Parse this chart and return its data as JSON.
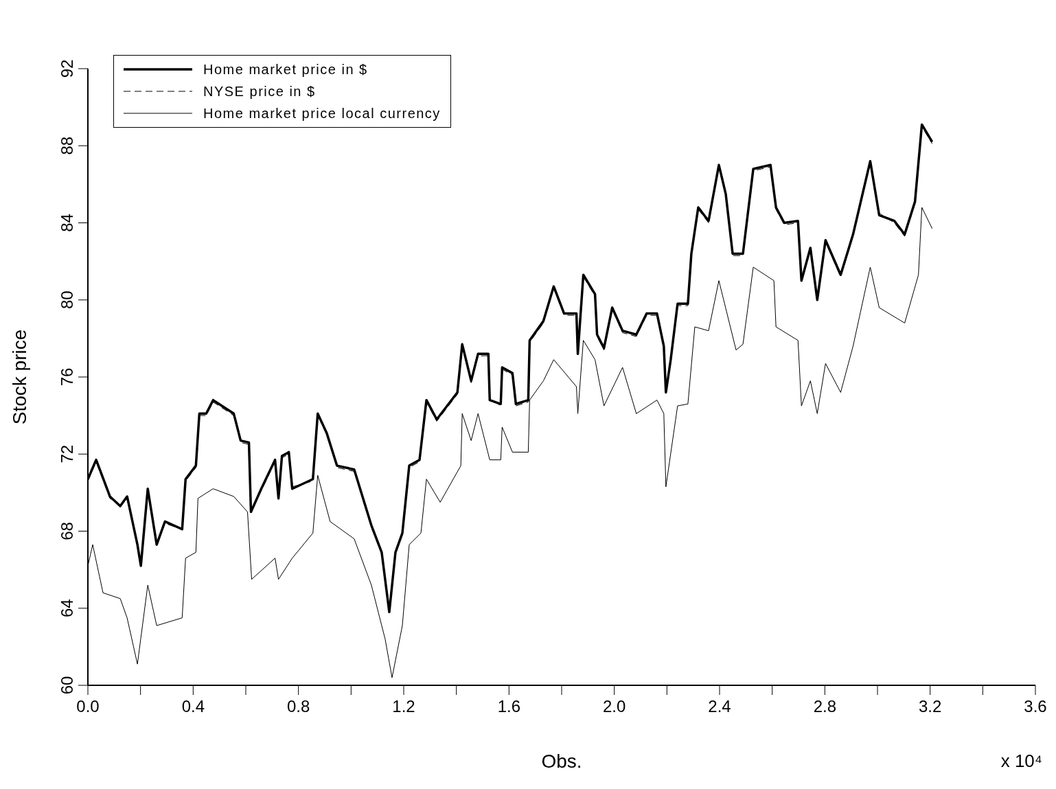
{
  "chart_data": {
    "type": "line",
    "xlabel": "Obs.",
    "ylabel": "Stock price",
    "annotations": [
      "x 10⁴"
    ],
    "xlim": [
      0,
      3.6
    ],
    "ylim": [
      60,
      92
    ],
    "xticks": [
      {
        "value": 0,
        "label": "0.0"
      },
      {
        "value": 0.2,
        "label": null
      },
      0.4,
      {
        "value": 0.6,
        "label": null
      },
      0.8,
      {
        "value": 1.0,
        "label": null
      },
      1.2,
      {
        "value": 1.4,
        "label": null
      },
      1.6,
      {
        "value": 1.8,
        "label": null
      },
      {
        "value": 2,
        "label": "2.0"
      },
      {
        "value": 2.2,
        "label": null
      },
      2.4,
      {
        "value": 2.6,
        "label": null
      },
      2.8,
      {
        "value": 3.0,
        "label": null
      },
      3.2,
      {
        "value": 3.4,
        "label": null
      },
      3.6
    ],
    "yticks": [
      60,
      64,
      68,
      72,
      76,
      80,
      84,
      88,
      92
    ],
    "legend": "top left",
    "series": [
      {
        "name": "Home market price in $",
        "color": "#000000",
        "line_style": "solid",
        "x": [
          0,
          0.0314,
          0.0837,
          0.1229,
          0.149,
          0.1882,
          0.2013,
          0.2275,
          0.2614,
          0.2928,
          0.3582,
          0.3712,
          0.4104,
          0.4235,
          0.4497,
          0.4758,
          0.5542,
          0.5804,
          0.6118,
          0.6196,
          0.6588,
          0.7111,
          0.7242,
          0.7373,
          0.7634,
          0.7765,
          0.8549,
          0.8732,
          0.9072,
          0.9464,
          1.0118,
          1.0771,
          1.1163,
          1.1451,
          1.1686,
          1.1948,
          1.2209,
          1.2601,
          1.2863,
          1.3255,
          1.4039,
          1.4222,
          1.4562,
          1.4824,
          1.5216,
          1.5268,
          1.5686,
          1.5739,
          1.6131,
          1.6261,
          1.6732,
          1.6784,
          1.7307,
          1.7699,
          1.8092,
          1.8562,
          1.8614,
          1.8824,
          1.9268,
          1.9346,
          1.9608,
          1.9922,
          2.0314,
          2.0837,
          2.1229,
          2.1621,
          2.1882,
          2.1961,
          2.2144,
          2.2405,
          2.2797,
          2.2928,
          2.319,
          2.3582,
          2.3974,
          2.4235,
          2.4497,
          2.4889,
          2.5281,
          2.5935,
          2.6144,
          2.6458,
          2.698,
          2.7111,
          2.7451,
          2.7712,
          2.8026,
          2.8601,
          2.9072,
          2.9725,
          3.0065,
          3.0641,
          3.1033,
          3.1425,
          3.1686,
          3.2078
        ],
        "values": [
          70.7,
          71.7,
          69.8,
          69.3,
          69.8,
          67.3,
          66.2,
          70.2,
          67.3,
          68.5,
          68.1,
          70.7,
          71.4,
          74.1,
          74.1,
          74.8,
          74.1,
          72.7,
          72.6,
          69.0,
          70.2,
          71.7,
          69.7,
          71.9,
          72.1,
          70.2,
          70.7,
          74.1,
          73.1,
          71.4,
          71.2,
          68.3,
          66.9,
          63.8,
          66.9,
          67.9,
          71.4,
          71.7,
          74.8,
          73.8,
          75.2,
          77.7,
          75.8,
          77.2,
          77.2,
          74.8,
          74.6,
          76.5,
          76.2,
          74.6,
          74.8,
          77.9,
          78.9,
          80.7,
          79.3,
          79.3,
          77.2,
          81.3,
          80.3,
          78.2,
          77.5,
          79.6,
          78.4,
          78.2,
          79.3,
          79.3,
          77.6,
          75.2,
          76.9,
          79.8,
          79.8,
          82.4,
          84.8,
          84.1,
          87.0,
          85.5,
          82.4,
          82.4,
          86.8,
          87.0,
          84.8,
          84.0,
          84.1,
          81.0,
          82.7,
          80.0,
          83.1,
          81.3,
          83.4,
          87.2,
          84.4,
          84.1,
          83.4,
          85.1,
          89.1,
          88.2
        ]
      },
      {
        "name": "NYSE price in $",
        "color": "#000000",
        "line_style": "dashed",
        "x": [
          0,
          0.0314,
          0.0837,
          0.1229,
          0.149,
          0.1882,
          0.2013,
          0.2275,
          0.2614,
          0.2928,
          0.3582,
          0.3712,
          0.4104,
          0.4235,
          0.4497,
          0.4758,
          0.5542,
          0.5804,
          0.6118,
          0.6196,
          0.6588,
          0.7111,
          0.7242,
          0.7373,
          0.7634,
          0.7765,
          0.8549,
          0.8732,
          0.9072,
          0.9464,
          1.0118,
          1.0771,
          1.1163,
          1.1451,
          1.1686,
          1.1948,
          1.2209,
          1.2601,
          1.2863,
          1.3255,
          1.4039,
          1.4222,
          1.4562,
          1.4824,
          1.5216,
          1.5268,
          1.5686,
          1.5739,
          1.6131,
          1.6261,
          1.6732,
          1.6784,
          1.7307,
          1.7699,
          1.8092,
          1.8562,
          1.8614,
          1.8824,
          1.9268,
          1.9346,
          1.9608,
          1.9922,
          2.0314,
          2.0837,
          2.1229,
          2.1621,
          2.1882,
          2.1961,
          2.2144,
          2.2405,
          2.2797,
          2.2928,
          2.319,
          2.3582,
          2.3974,
          2.4235,
          2.4497,
          2.4889,
          2.5281,
          2.5935,
          2.6144,
          2.6458,
          2.698,
          2.7111,
          2.7451,
          2.7712,
          2.8026,
          2.8601,
          2.9072,
          2.9725,
          3.0065,
          3.0641,
          3.1033,
          3.1425,
          3.1686,
          3.2078
        ],
        "values": [
          70.6,
          71.6,
          69.7,
          69.3,
          69.8,
          67.2,
          66.3,
          70.1,
          67.3,
          68.4,
          68.1,
          70.6,
          71.3,
          74.0,
          74.0,
          74.7,
          74.0,
          72.6,
          72.5,
          69.1,
          70.1,
          71.6,
          69.8,
          71.8,
          72.0,
          70.3,
          70.6,
          74.0,
          73.0,
          71.3,
          71.1,
          68.2,
          66.8,
          63.9,
          66.8,
          67.8,
          71.3,
          71.6,
          74.7,
          73.7,
          75.1,
          77.6,
          75.7,
          77.1,
          77.1,
          74.9,
          74.5,
          76.4,
          76.1,
          74.5,
          74.7,
          77.8,
          78.8,
          80.6,
          79.2,
          79.2,
          77.3,
          81.2,
          80.2,
          78.1,
          77.4,
          79.5,
          78.3,
          78.1,
          79.2,
          79.2,
          77.5,
          75.3,
          76.8,
          79.7,
          79.7,
          82.3,
          84.7,
          84.0,
          86.9,
          85.4,
          82.3,
          82.3,
          86.7,
          86.9,
          84.7,
          83.9,
          84.0,
          81.1,
          82.6,
          80.1,
          83.0,
          81.2,
          83.3,
          87.1,
          84.5,
          84.0,
          83.3,
          85.0,
          89.0,
          88.1
        ]
      },
      {
        "name": "Home market price local currency",
        "color": "#000000",
        "line_style": "solid",
        "x": [
          0,
          0.0183,
          0.0575,
          0.1229,
          0.149,
          0.1882,
          0.2275,
          0.2614,
          0.3582,
          0.3712,
          0.4104,
          0.4182,
          0.4758,
          0.5542,
          0.6065,
          0.6222,
          0.7111,
          0.7242,
          0.7765,
          0.8549,
          0.8732,
          0.9203,
          1.0118,
          1.0771,
          1.1294,
          1.1556,
          1.1948,
          1.2209,
          1.2654,
          1.2863,
          1.3386,
          1.417,
          1.4222,
          1.4562,
          1.4824,
          1.5268,
          1.5686,
          1.5739,
          1.6131,
          1.6732,
          1.6784,
          1.7307,
          1.7699,
          1.8562,
          1.8614,
          1.8824,
          1.9268,
          1.9608,
          2.0314,
          2.0837,
          2.1621,
          2.1882,
          2.1961,
          2.2405,
          2.2797,
          2.3059,
          2.3582,
          2.3974,
          2.4627,
          2.4889,
          2.5281,
          2.6065,
          2.6144,
          2.698,
          2.7111,
          2.7451,
          2.7712,
          2.8026,
          2.8601,
          2.9072,
          2.9725,
          3.0065,
          3.1033,
          3.1556,
          3.1686,
          3.2078
        ],
        "values": [
          66.2,
          67.3,
          64.8,
          64.5,
          63.5,
          61.1,
          65.2,
          63.1,
          63.5,
          66.6,
          66.9,
          69.7,
          70.2,
          69.8,
          69.0,
          65.5,
          66.6,
          65.5,
          66.6,
          67.9,
          70.9,
          68.5,
          67.6,
          65.2,
          62.4,
          60.4,
          63.1,
          67.3,
          67.9,
          70.7,
          69.5,
          71.4,
          74.1,
          72.7,
          74.1,
          71.7,
          71.7,
          73.4,
          72.1,
          72.1,
          74.8,
          75.8,
          76.9,
          75.5,
          74.1,
          77.9,
          76.9,
          74.5,
          76.5,
          74.1,
          74.8,
          74.1,
          70.3,
          74.5,
          74.6,
          78.6,
          78.4,
          81.0,
          77.4,
          77.7,
          81.7,
          81.0,
          78.6,
          77.9,
          74.5,
          75.8,
          74.1,
          76.7,
          75.2,
          77.6,
          81.7,
          79.6,
          78.8,
          81.3,
          84.8,
          83.7
        ]
      }
    ]
  }
}
